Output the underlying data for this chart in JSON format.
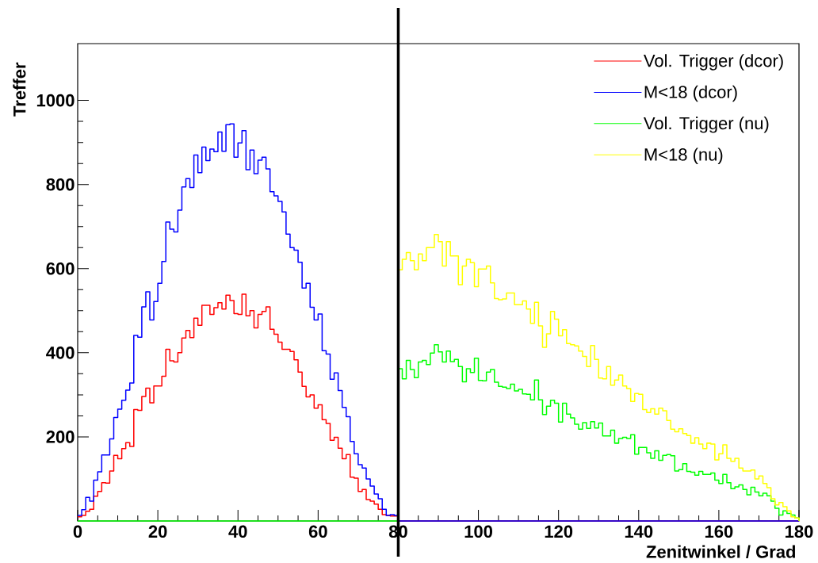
{
  "chart_data": {
    "type": "step",
    "xlabel": "Zenitwinkel / Grad",
    "ylabel": "Treffer",
    "xlim": [
      0,
      180
    ],
    "ylim": [
      0,
      1135
    ],
    "xticks": [
      0,
      20,
      40,
      60,
      80,
      100,
      120,
      140,
      160,
      180
    ],
    "yticks": [
      200,
      400,
      600,
      800,
      1000
    ],
    "legend": "top right",
    "ref_lines": [
      {
        "axis": "x",
        "value": 80,
        "color": "#000000"
      }
    ],
    "series": [
      {
        "name": "Vol. Trigger (dcor)",
        "color": "#ff0000",
        "x": [
          0,
          1,
          2,
          3,
          4,
          5,
          6,
          7,
          8,
          9,
          10,
          11,
          12,
          13,
          14,
          15,
          16,
          17,
          18,
          19,
          20,
          21,
          22,
          23,
          24,
          25,
          26,
          27,
          28,
          29,
          30,
          31,
          32,
          33,
          34,
          35,
          36,
          37,
          38,
          39,
          40,
          41,
          42,
          43,
          44,
          45,
          46,
          47,
          48,
          49,
          50,
          51,
          52,
          53,
          54,
          55,
          56,
          57,
          58,
          59,
          60,
          61,
          62,
          63,
          64,
          65,
          66,
          67,
          68,
          69,
          70,
          71,
          72,
          73,
          74,
          75,
          76,
          77,
          78,
          79,
          80,
          180
        ],
        "values": [
          10,
          13,
          23,
          28,
          59,
          70,
          91,
          90,
          119,
          156,
          148,
          172,
          186,
          177,
          265,
          263,
          296,
          316,
          281,
          321,
          321,
          344,
          408,
          381,
          378,
          400,
          435,
          453,
          436,
          482,
          465,
          513,
          513,
          491,
          507,
          519,
          504,
          537,
          524,
          493,
          491,
          539,
          488,
          500,
          459,
          491,
          498,
          509,
          456,
          444,
          425,
          408,
          408,
          403,
          383,
          354,
          320,
          295,
          300,
          268,
          276,
          241,
          232,
          192,
          199,
          173,
          148,
          158,
          104,
          102,
          70,
          75,
          51,
          47,
          40,
          28,
          15,
          13,
          12,
          12,
          0,
          0
        ]
      },
      {
        "name": "M<18 (dcor)",
        "color": "#0000ff",
        "x": [
          0,
          1,
          2,
          3,
          4,
          5,
          6,
          7,
          8,
          9,
          10,
          11,
          12,
          13,
          14,
          15,
          16,
          17,
          18,
          19,
          20,
          21,
          22,
          23,
          24,
          25,
          26,
          27,
          28,
          29,
          30,
          31,
          32,
          33,
          34,
          35,
          36,
          37,
          38,
          39,
          40,
          41,
          42,
          43,
          44,
          45,
          46,
          47,
          48,
          49,
          50,
          51,
          52,
          53,
          54,
          55,
          56,
          57,
          58,
          59,
          60,
          61,
          62,
          63,
          64,
          65,
          66,
          67,
          68,
          69,
          70,
          71,
          72,
          73,
          74,
          75,
          76,
          77,
          78,
          79,
          80,
          180
        ],
        "values": [
          13,
          27,
          56,
          47,
          97,
          117,
          157,
          157,
          195,
          246,
          266,
          287,
          311,
          328,
          441,
          437,
          509,
          545,
          478,
          522,
          565,
          617,
          711,
          694,
          687,
          739,
          794,
          814,
          793,
          870,
          828,
          889,
          857,
          884,
          878,
          925,
          879,
          942,
          944,
          865,
          899,
          928,
          835,
          882,
          826,
          858,
          865,
          837,
          783,
          773,
          760,
          735,
          682,
          650,
          644,
          615,
          554,
          565,
          508,
          478,
          492,
          405,
          397,
          337,
          352,
          310,
          270,
          248,
          189,
          160,
          134,
          126,
          100,
          83,
          64,
          53,
          28,
          13,
          15,
          13,
          0,
          0
        ]
      },
      {
        "name": "Vol. Trigger (nu)",
        "color": "#00ff00",
        "x": [
          0,
          80,
          81,
          82,
          83,
          84,
          85,
          86,
          87,
          88,
          89,
          90,
          91,
          92,
          93,
          94,
          95,
          96,
          97,
          98,
          99,
          100,
          101,
          102,
          103,
          104,
          105,
          106,
          107,
          108,
          109,
          110,
          111,
          112,
          113,
          114,
          115,
          116,
          117,
          118,
          119,
          120,
          121,
          122,
          123,
          124,
          125,
          126,
          127,
          128,
          129,
          130,
          131,
          132,
          133,
          134,
          135,
          136,
          137,
          138,
          139,
          140,
          141,
          142,
          143,
          144,
          145,
          146,
          147,
          148,
          149,
          150,
          151,
          152,
          153,
          154,
          155,
          156,
          157,
          158,
          159,
          160,
          161,
          162,
          163,
          164,
          165,
          166,
          167,
          168,
          169,
          170,
          171,
          172,
          173,
          174,
          175,
          176,
          177,
          178,
          179,
          180
        ],
        "values": [
          0,
          362,
          338,
          382,
          360,
          341,
          378,
          382,
          372,
          399,
          419,
          402,
          378,
          404,
          379,
          384,
          367,
          331,
          362,
          353,
          387,
          334,
          333,
          354,
          360,
          330,
          320,
          318,
          315,
          325,
          309,
          313,
          302,
          301,
          288,
          335,
          288,
          253,
          273,
          287,
          280,
          235,
          280,
          254,
          245,
          230,
          218,
          234,
          220,
          236,
          221,
          233,
          202,
          202,
          216,
          185,
          196,
          199,
          196,
          205,
          159,
          175,
          175,
          162,
          149,
          167,
          144,
          156,
          158,
          155,
          119,
          122,
          136,
          118,
          116,
          109,
          118,
          111,
          111,
          114,
          97,
          89,
          111,
          91,
          77,
          81,
          86,
          75,
          62,
          80,
          69,
          60,
          66,
          60,
          47,
          30,
          14,
          24,
          18,
          14,
          7,
          0
        ]
      },
      {
        "name": "M<18 (nu)",
        "color": "#ffff00",
        "x": [
          80,
          81,
          82,
          83,
          84,
          85,
          86,
          87,
          88,
          89,
          90,
          91,
          92,
          93,
          94,
          95,
          96,
          97,
          98,
          99,
          100,
          101,
          102,
          103,
          104,
          105,
          106,
          107,
          108,
          109,
          110,
          111,
          112,
          113,
          114,
          115,
          116,
          117,
          118,
          119,
          120,
          121,
          122,
          123,
          124,
          125,
          126,
          127,
          128,
          129,
          130,
          131,
          132,
          133,
          134,
          135,
          136,
          137,
          138,
          139,
          140,
          141,
          142,
          143,
          144,
          145,
          146,
          147,
          148,
          149,
          150,
          151,
          152,
          153,
          154,
          155,
          156,
          157,
          158,
          159,
          160,
          161,
          162,
          163,
          164,
          165,
          166,
          167,
          168,
          169,
          170,
          171,
          172,
          173,
          174,
          175,
          176,
          177,
          178,
          179,
          180
        ],
        "values": [
          597,
          622,
          638,
          619,
          597,
          635,
          619,
          650,
          650,
          681,
          664,
          606,
          664,
          630,
          630,
          562,
          606,
          622,
          614,
          557,
          599,
          599,
          606,
          566,
          529,
          526,
          528,
          542,
          542,
          514,
          514,
          523,
          504,
          470,
          520,
          464,
          413,
          445,
          498,
          480,
          440,
          455,
          422,
          419,
          416,
          404,
          391,
          367,
          417,
          384,
          340,
          338,
          367,
          323,
          335,
          347,
          321,
          315,
          284,
          303,
          301,
          265,
          258,
          267,
          254,
          268,
          262,
          239,
          218,
          212,
          219,
          208,
          203,
          185,
          198,
          183,
          172,
          185,
          183,
          145,
          160,
          181,
          149,
          142,
          149,
          126,
          119,
          119,
          121,
          100,
          107,
          89,
          79,
          53,
          38,
          44,
          34,
          24,
          10,
          7,
          0
        ]
      }
    ]
  }
}
